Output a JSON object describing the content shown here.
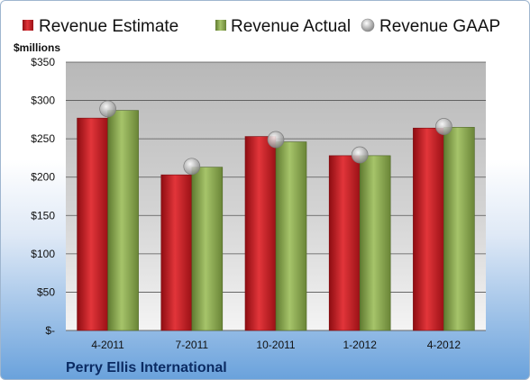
{
  "chart_data": {
    "type": "bar",
    "company": "Perry Ellis International",
    "unit_label": "$millions",
    "categories": [
      "4-2011",
      "7-2011",
      "10-2011",
      "1-2012",
      "4-2012"
    ],
    "series": [
      {
        "name": "Revenue Estimate",
        "kind": "bar",
        "color": "#cc1f24",
        "values": [
          277,
          203,
          253,
          228,
          264
        ]
      },
      {
        "name": "Revenue Actual",
        "kind": "bar",
        "color": "#8fae55",
        "values": [
          287,
          213,
          246,
          228,
          265
        ]
      },
      {
        "name": "Revenue GAAP",
        "kind": "marker",
        "color": "#b8b8b8",
        "values": [
          289,
          214,
          249,
          229,
          266
        ]
      }
    ],
    "y_ticks": [
      {
        "value": 0,
        "label": "$-"
      },
      {
        "value": 50,
        "label": "$50"
      },
      {
        "value": 100,
        "label": "$100"
      },
      {
        "value": 150,
        "label": "$150"
      },
      {
        "value": 200,
        "label": "$200"
      },
      {
        "value": 250,
        "label": "$250"
      },
      {
        "value": 300,
        "label": "$300"
      },
      {
        "value": 350,
        "label": "$350"
      }
    ],
    "ylim": [
      0,
      350
    ],
    "grid": true,
    "legend_position": "top"
  }
}
